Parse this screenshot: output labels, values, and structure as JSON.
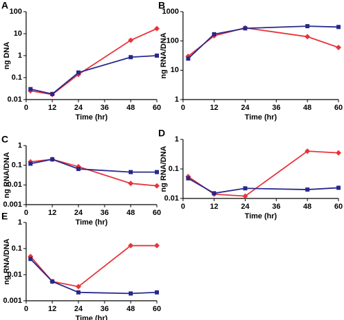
{
  "chart_data": [
    {
      "label": "A",
      "type": "line",
      "log_y": true,
      "xlabel": "Time (hr)",
      "ylabel": "ng DNA",
      "x": [
        2,
        12,
        24,
        48,
        60
      ],
      "xlim": [
        0,
        60
      ],
      "xticks": [
        0,
        12,
        24,
        36,
        48,
        60
      ],
      "ylim": [
        0.01,
        100
      ],
      "yticks": [
        0.01,
        0.1,
        1,
        10,
        100
      ],
      "series": [
        {
          "color": "#e8333a",
          "marker": "diamond",
          "values": [
            0.025,
            0.017,
            0.14,
            5,
            17
          ]
        },
        {
          "color": "#27288a",
          "marker": "square",
          "values": [
            0.03,
            0.018,
            0.17,
            0.85,
            1.0
          ]
        }
      ]
    },
    {
      "label": "B",
      "type": "line",
      "log_y": true,
      "xlabel": "Time (hr)",
      "ylabel": "ng RNA/DNA",
      "x": [
        2,
        12,
        24,
        48,
        60
      ],
      "xlim": [
        0,
        60
      ],
      "xticks": [
        0,
        12,
        24,
        36,
        48,
        60
      ],
      "ylim": [
        1,
        1000
      ],
      "yticks": [
        1,
        10,
        100,
        1000
      ],
      "series": [
        {
          "color": "#e8333a",
          "marker": "diamond",
          "values": [
            30,
            150,
            280,
            140,
            60
          ]
        },
        {
          "color": "#27288a",
          "marker": "square",
          "values": [
            25,
            170,
            270,
            320,
            300
          ]
        }
      ]
    },
    {
      "label": "C",
      "type": "line",
      "log_y": true,
      "xlabel": "Time (hr)",
      "ylabel": "ng RNA/DNA",
      "x": [
        2,
        12,
        24,
        48,
        60
      ],
      "xlim": [
        0,
        60
      ],
      "xticks": [
        0,
        12,
        24,
        36,
        48,
        60
      ],
      "ylim": [
        0.001,
        1
      ],
      "yticks": [
        0.001,
        0.01,
        0.1,
        1
      ],
      "series": [
        {
          "color": "#e8333a",
          "marker": "diamond",
          "values": [
            0.15,
            0.2,
            0.085,
            0.012,
            0.009
          ]
        },
        {
          "color": "#27288a",
          "marker": "square",
          "values": [
            0.12,
            0.2,
            0.065,
            0.045,
            0.045
          ]
        }
      ]
    },
    {
      "label": "D",
      "type": "line",
      "log_y": true,
      "xlabel": "Time (hr)",
      "ylabel": "ng RNA/DNA",
      "x": [
        2,
        12,
        24,
        48,
        60
      ],
      "xlim": [
        0,
        60
      ],
      "xticks": [
        0,
        12,
        24,
        36,
        48,
        60
      ],
      "ylim": [
        0.01,
        1
      ],
      "yticks": [
        0.01,
        0.1,
        1
      ],
      "series": [
        {
          "color": "#e8333a",
          "marker": "diamond",
          "values": [
            0.055,
            0.014,
            0.012,
            0.4,
            0.35
          ]
        },
        {
          "color": "#27288a",
          "marker": "square",
          "values": [
            0.048,
            0.015,
            0.022,
            0.02,
            0.023
          ]
        }
      ]
    },
    {
      "label": "E",
      "type": "line",
      "log_y": true,
      "xlabel": "Time (hr)",
      "ylabel": "ng RNA/DNA",
      "x": [
        2,
        12,
        24,
        48,
        60
      ],
      "xlim": [
        0,
        60
      ],
      "xticks": [
        0,
        12,
        24,
        36,
        48,
        60
      ],
      "ylim": [
        0.001,
        1
      ],
      "yticks": [
        0.001,
        0.01,
        0.1,
        1
      ],
      "series": [
        {
          "color": "#e8333a",
          "marker": "diamond",
          "values": [
            0.05,
            0.0055,
            0.0035,
            0.13,
            0.13
          ]
        },
        {
          "color": "#27288a",
          "marker": "square",
          "values": [
            0.04,
            0.0055,
            0.0021,
            0.0019,
            0.0021
          ]
        }
      ]
    }
  ]
}
